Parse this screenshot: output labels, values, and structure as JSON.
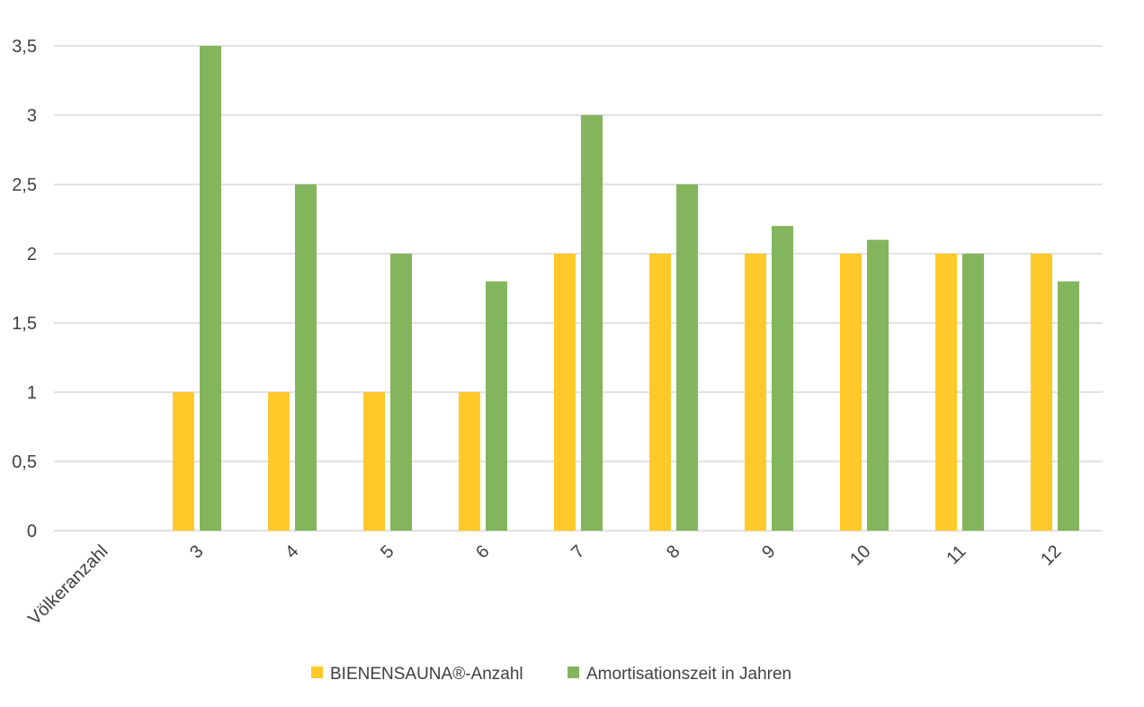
{
  "chart_data": {
    "type": "bar",
    "title": "",
    "xlabel": "",
    "ylabel": "",
    "categories": [
      "Völkeranzahl",
      "3",
      "4",
      "5",
      "6",
      "7",
      "8",
      "9",
      "10",
      "11",
      "12"
    ],
    "series": [
      {
        "name": "BIENENSAUNA®-Anzahl",
        "color": "#FFC929",
        "values": [
          null,
          1,
          1,
          1,
          1,
          2,
          2,
          2,
          2,
          2,
          2
        ]
      },
      {
        "name": "Amortisationszeit in Jahren",
        "color": "#83B55D",
        "values": [
          null,
          3.5,
          2.5,
          2,
          1.8,
          3,
          2.5,
          2.2,
          2.1,
          2,
          1.8
        ]
      }
    ],
    "ylim": [
      0,
      3.5
    ],
    "yticks": [
      "0",
      "0,5",
      "1",
      "1,5",
      "2",
      "2,5",
      "3",
      "3,5"
    ],
    "grid": true,
    "legend_position": "bottom"
  }
}
